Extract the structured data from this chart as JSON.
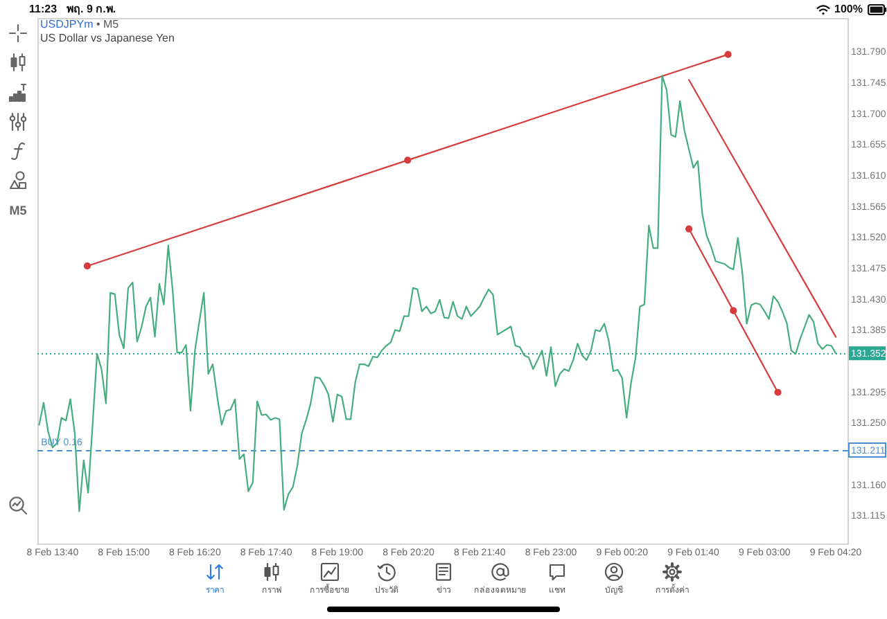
{
  "chart_data": {
    "type": "line",
    "title": "USDJPYm • M5",
    "subtitle": "US Dollar vs Japanese Yen",
    "annotations": [
      "11:23",
      "พฤ. 9 ก.พ.",
      "100%",
      "M5",
      {
        "text": "BUY 0.16",
        "x": "--02-08T13:27",
        "y": 131.211
      },
      "ราคา",
      "กราฟ",
      "การซื้อขาย",
      "ประวัติ",
      "ข่าว",
      "กล่องจดหมาย",
      "แชท",
      "บัญชี",
      "การตั้งค่า"
    ],
    "series": [
      {
        "color": "#45ad7e",
        "x": [
          "--02-08T13:25",
          "--02-08T13:30",
          "--02-08T13:35",
          "--02-08T13:40",
          "--02-08T13:45",
          "--02-08T13:50",
          "--02-08T13:55",
          "--02-08T14:00",
          "--02-08T14:05",
          "--02-08T14:10",
          "--02-08T14:15",
          "--02-08T14:20",
          "--02-08T14:25",
          "--02-08T14:30",
          "--02-08T14:35",
          "--02-08T14:40",
          "--02-08T14:45",
          "--02-08T14:50",
          "--02-08T14:55",
          "--02-08T15:00",
          "--02-08T15:05",
          "--02-08T15:10",
          "--02-08T15:15",
          "--02-08T15:20",
          "--02-08T15:25",
          "--02-08T15:30",
          "--02-08T15:35",
          "--02-08T15:40",
          "--02-08T15:45",
          "--02-08T15:50",
          "--02-08T15:55",
          "--02-08T16:00",
          "--02-08T16:05",
          "--02-08T16:10",
          "--02-08T16:15",
          "--02-08T16:20",
          "--02-08T16:25",
          "--02-08T16:30",
          "--02-08T16:35",
          "--02-08T16:40",
          "--02-08T16:45",
          "--02-08T16:50",
          "--02-08T16:55",
          "--02-08T17:00",
          "--02-08T17:05",
          "--02-08T17:10",
          "--02-08T17:15",
          "--02-08T17:20",
          "--02-08T17:25",
          "--02-08T17:30",
          "--02-08T17:35",
          "--02-08T17:40",
          "--02-08T17:45",
          "--02-08T17:50",
          "--02-08T17:55",
          "--02-08T18:00",
          "--02-08T18:05",
          "--02-08T18:10",
          "--02-08T18:15",
          "--02-08T18:20",
          "--02-08T18:25",
          "--02-08T18:30",
          "--02-08T18:35",
          "--02-08T18:40",
          "--02-08T18:45",
          "--02-08T18:50",
          "--02-08T18:55",
          "--02-08T19:00",
          "--02-08T19:05",
          "--02-08T19:10",
          "--02-08T19:15",
          "--02-08T19:20",
          "--02-08T19:25",
          "--02-08T19:30",
          "--02-08T19:35",
          "--02-08T19:40",
          "--02-08T19:45",
          "--02-08T19:50",
          "--02-08T19:55",
          "--02-08T20:00",
          "--02-08T20:05",
          "--02-08T20:10",
          "--02-08T20:15",
          "--02-08T20:20",
          "--02-08T20:25",
          "--02-08T20:30",
          "--02-08T20:35",
          "--02-08T20:40",
          "--02-08T20:45",
          "--02-08T20:50",
          "--02-08T20:55",
          "--02-08T21:00",
          "--02-08T21:05",
          "--02-08T21:10",
          "--02-08T21:15",
          "--02-08T21:20",
          "--02-08T21:25",
          "--02-08T21:30",
          "--02-08T21:35",
          "--02-08T21:40",
          "--02-08T21:45",
          "--02-08T21:50",
          "--02-08T21:55",
          "--02-08T22:00",
          "--02-08T22:05",
          "--02-08T22:10",
          "--02-08T22:15",
          "--02-08T22:20",
          "--02-08T22:25",
          "--02-08T22:30",
          "--02-08T22:35",
          "--02-08T22:40",
          "--02-08T22:45",
          "--02-08T22:50",
          "--02-08T22:55",
          "--02-08T23:00",
          "--02-08T23:05",
          "--02-08T23:10",
          "--02-08T23:15",
          "--02-08T23:20",
          "--02-08T23:25",
          "--02-08T23:30",
          "--02-08T23:35",
          "--02-08T23:40",
          "--02-08T23:45",
          "--02-08T23:50",
          "--02-08T23:55",
          "--02-09T00:00",
          "--02-09T00:05",
          "--02-09T00:10",
          "--02-09T00:15",
          "--02-09T00:20",
          "--02-09T00:25",
          "--02-09T00:30",
          "--02-09T00:35",
          "--02-09T00:40",
          "--02-09T00:45",
          "--02-09T00:50",
          "--02-09T00:55",
          "--02-09T01:00",
          "--02-09T01:05",
          "--02-09T01:10",
          "--02-09T01:15",
          "--02-09T01:20",
          "--02-09T01:25",
          "--02-09T01:30",
          "--02-09T01:35",
          "--02-09T01:40",
          "--02-09T01:45",
          "--02-09T01:50",
          "--02-09T01:55",
          "--02-09T02:00",
          "--02-09T02:05",
          "--02-09T02:10",
          "--02-09T02:15",
          "--02-09T02:20",
          "--02-09T02:25",
          "--02-09T02:30",
          "--02-09T02:35",
          "--02-09T02:40",
          "--02-09T02:45",
          "--02-09T02:50",
          "--02-09T02:55",
          "--02-09T03:00",
          "--02-09T03:05",
          "--02-09T03:10",
          "--02-09T03:15",
          "--02-09T03:20",
          "--02-09T03:25",
          "--02-09T03:30",
          "--02-09T03:35",
          "--02-09T03:40",
          "--02-09T03:45",
          "--02-09T03:50",
          "--02-09T03:55",
          "--02-09T04:00",
          "--02-09T04:05",
          "--02-09T04:10",
          "--02-09T04:15",
          "--02-09T04:20"
        ],
        "values": [
          131.248,
          131.28,
          131.238,
          131.215,
          131.221,
          131.258,
          131.254,
          131.285,
          131.235,
          131.122,
          131.196,
          131.149,
          131.248,
          131.351,
          131.329,
          131.279,
          131.44,
          131.438,
          131.379,
          131.359,
          131.447,
          131.455,
          131.369,
          131.39,
          131.42,
          131.433,
          131.376,
          131.453,
          131.423,
          131.509,
          131.443,
          131.353,
          131.353,
          131.364,
          131.268,
          131.356,
          131.399,
          131.44,
          131.322,
          131.336,
          131.289,
          131.248,
          131.268,
          131.27,
          131.285,
          131.198,
          131.205,
          131.151,
          131.164,
          131.282,
          131.262,
          131.263,
          131.255,
          131.258,
          131.256,
          131.124,
          131.147,
          131.157,
          131.188,
          131.235,
          131.255,
          131.279,
          131.317,
          131.316,
          131.306,
          131.292,
          131.252,
          131.292,
          131.289,
          131.256,
          131.256,
          131.309,
          131.336,
          131.336,
          131.333,
          131.347,
          131.346,
          131.356,
          131.363,
          131.368,
          131.386,
          131.384,
          131.406,
          131.406,
          131.447,
          131.445,
          131.413,
          131.42,
          131.41,
          131.413,
          131.43,
          131.404,
          131.403,
          131.427,
          131.406,
          131.402,
          131.42,
          131.406,
          131.413,
          131.42,
          131.433,
          131.445,
          131.437,
          131.379,
          131.383,
          131.387,
          131.391,
          131.363,
          131.361,
          131.349,
          131.346,
          131.329,
          131.342,
          131.356,
          131.319,
          131.361,
          131.304,
          131.322,
          131.329,
          131.326,
          131.342,
          131.366,
          131.349,
          131.342,
          131.356,
          131.386,
          131.384,
          131.395,
          131.37,
          131.326,
          131.328,
          131.316,
          131.258,
          131.309,
          131.345,
          131.42,
          131.423,
          131.538,
          131.505,
          131.505,
          131.756,
          131.735,
          131.67,
          131.667,
          131.719,
          131.676,
          131.649,
          131.622,
          131.632,
          131.555,
          131.523,
          131.507,
          131.486,
          131.484,
          131.482,
          131.477,
          131.474,
          131.52,
          131.47,
          131.395,
          131.422,
          131.425,
          131.423,
          131.413,
          131.402,
          131.435,
          131.427,
          131.413,
          131.396,
          131.356,
          131.351,
          131.373,
          131.39,
          131.408,
          131.398,
          131.366,
          131.358,
          131.364,
          131.363,
          131.352
        ]
      },
      {
        "color": "#d63c3c",
        "marker": "circle",
        "x": [
          "--02-08T14:19",
          "--02-08T20:19",
          "--02-09T02:19"
        ],
        "values": [
          131.479,
          131.633,
          131.787
        ]
      },
      {
        "color": "#d63c3c",
        "x": [
          "--02-09T01:35",
          "--02-09T04:20"
        ],
        "values": [
          131.75,
          131.376
        ]
      },
      {
        "color": "#d63c3c",
        "marker": "circle",
        "x": [
          "--02-09T01:35",
          "--02-09T02:25",
          "--02-09T03:15"
        ],
        "values": [
          131.533,
          131.414,
          131.295
        ]
      }
    ],
    "xlim": [
      "--02-08T13:23",
      "--02-09T04:34"
    ],
    "xticks": [
      {
        "value": "--02-08T13:40",
        "label": "8 Feb 13:40"
      },
      {
        "value": "--02-08T15:00",
        "label": "8 Feb 15:00"
      },
      {
        "value": "--02-08T16:20",
        "label": "8 Feb 16:20"
      },
      {
        "value": "--02-08T17:40",
        "label": "8 Feb 17:40"
      },
      {
        "value": "--02-08T19:00",
        "label": "8 Feb 19:00"
      },
      {
        "value": "--02-08T20:20",
        "label": "8 Feb 20:20"
      },
      {
        "value": "--02-08T21:40",
        "label": "8 Feb 21:40"
      },
      {
        "value": "--02-08T23:00",
        "label": "8 Feb 23:00"
      },
      {
        "value": "--02-09T00:20",
        "label": "9 Feb 00:20"
      },
      {
        "value": "--02-09T01:40",
        "label": "9 Feb 01:40"
      },
      {
        "value": "--02-09T03:00",
        "label": "9 Feb 03:00"
      },
      {
        "value": "--02-09T04:20",
        "label": "9 Feb 04:20"
      }
    ],
    "ylim": [
      131.074,
      131.84
    ],
    "yticks": [
      {
        "value": 131.115,
        "label": "131.115"
      },
      {
        "value": 131.16,
        "label": "131.160"
      },
      {
        "value": 131.25,
        "label": "131.250"
      },
      {
        "value": 131.295,
        "label": "131.295"
      },
      {
        "value": 131.385,
        "label": "131.385"
      },
      {
        "value": 131.43,
        "label": "131.430"
      },
      {
        "value": 131.475,
        "label": "131.475"
      },
      {
        "value": 131.52,
        "label": "131.520"
      },
      {
        "value": 131.565,
        "label": "131.565"
      },
      {
        "value": 131.61,
        "label": "131.610"
      },
      {
        "value": 131.655,
        "label": "131.655"
      },
      {
        "value": 131.7,
        "label": "131.700"
      },
      {
        "value": 131.745,
        "label": "131.745"
      },
      {
        "value": 131.79,
        "label": "131.790"
      }
    ],
    "ref_lines": [
      {
        "axis": "y",
        "value": 131.352,
        "label": "131.352",
        "color": "#2aa894",
        "line_style": "dotted"
      },
      {
        "axis": "y",
        "value": 131.211,
        "label": "131.211",
        "color": "#4a90d9",
        "line_style": "dashed"
      }
    ],
    "grid": false,
    "legend": false
  }
}
